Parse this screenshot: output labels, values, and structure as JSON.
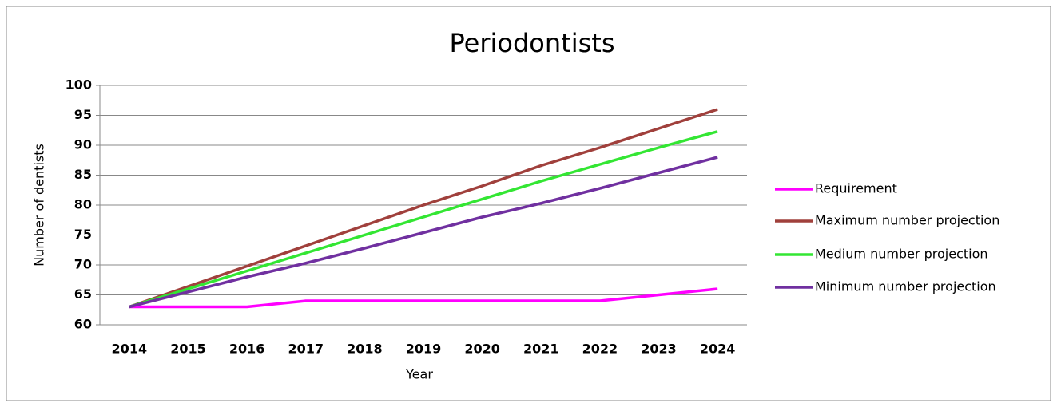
{
  "chart_data": {
    "type": "line",
    "title": "Periodontists",
    "x_label": "Year",
    "y_label": "Number of dentists",
    "categories": [
      "2014",
      "2015",
      "2016",
      "2017",
      "2018",
      "2019",
      "2020",
      "2021",
      "2022",
      "2023",
      "2024"
    ],
    "series": [
      {
        "name": "Requirement",
        "color": "#ff00ff",
        "values": [
          63,
          63,
          63,
          64,
          64,
          64,
          64,
          64,
          64,
          65,
          66
        ]
      },
      {
        "name": "Maximum number projection",
        "color": "#a0403c",
        "values": [
          63,
          66.4,
          69.8,
          73.2,
          76.6,
          80,
          83.2,
          86.6,
          89.6,
          92.8,
          96
        ]
      },
      {
        "name": "Medium number projection",
        "color": "#33e633",
        "values": [
          63,
          66,
          69,
          72,
          75,
          78,
          81,
          84,
          86.8,
          89.6,
          92.3
        ]
      },
      {
        "name": "Minimum number projection",
        "color": "#7030a0",
        "values": [
          63,
          65.5,
          68,
          70.3,
          72.8,
          75.4,
          78,
          80.3,
          82.8,
          85.4,
          88
        ]
      }
    ],
    "ylim": [
      60,
      100
    ],
    "yticks": [
      60,
      65,
      70,
      75,
      80,
      85,
      90,
      95,
      100
    ],
    "grid": true,
    "legend": "right"
  }
}
